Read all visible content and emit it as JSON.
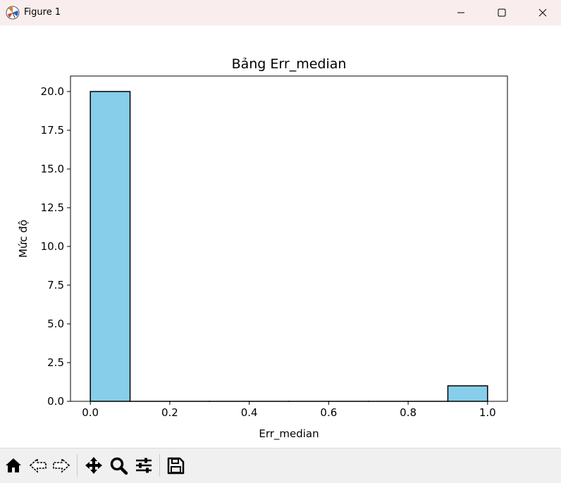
{
  "window": {
    "title": "Figure 1"
  },
  "toolbar": {
    "tools": [
      "home-icon",
      "back-arrow-icon",
      "forward-arrow-icon",
      "pan-icon",
      "zoom-icon",
      "configure-subplots-icon",
      "save-icon"
    ]
  },
  "colors": {
    "bar_fill": "#87ceeb",
    "bar_edge": "#000000",
    "titlebar": "#f9eded",
    "toolbar": "#f0f0f0"
  },
  "chart_data": {
    "type": "bar",
    "title": "Bảng Err_median",
    "xlabel": "Err_median",
    "ylabel": "Mức độ",
    "bins": [
      {
        "x0": 0.0,
        "x1": 0.1,
        "count": 20
      },
      {
        "x0": 0.1,
        "x1": 0.2,
        "count": 0
      },
      {
        "x0": 0.2,
        "x1": 0.3,
        "count": 0
      },
      {
        "x0": 0.3,
        "x1": 0.4,
        "count": 0
      },
      {
        "x0": 0.4,
        "x1": 0.5,
        "count": 0
      },
      {
        "x0": 0.5,
        "x1": 0.6,
        "count": 0
      },
      {
        "x0": 0.6,
        "x1": 0.7,
        "count": 0
      },
      {
        "x0": 0.7,
        "x1": 0.8,
        "count": 0
      },
      {
        "x0": 0.8,
        "x1": 0.9,
        "count": 0
      },
      {
        "x0": 0.9,
        "x1": 1.0,
        "count": 1
      }
    ],
    "xlim": [
      -0.05,
      1.05
    ],
    "ylim": [
      0,
      21
    ],
    "xticks": [
      "0.0",
      "0.2",
      "0.4",
      "0.6",
      "0.8",
      "1.0"
    ],
    "xtick_values": [
      0.0,
      0.2,
      0.4,
      0.6,
      0.8,
      1.0
    ],
    "yticks": [
      "0.0",
      "2.5",
      "5.0",
      "7.5",
      "10.0",
      "12.5",
      "15.0",
      "17.5",
      "20.0"
    ],
    "ytick_values": [
      0,
      2.5,
      5,
      7.5,
      10,
      12.5,
      15,
      17.5,
      20
    ],
    "grid": false,
    "legend": false
  }
}
